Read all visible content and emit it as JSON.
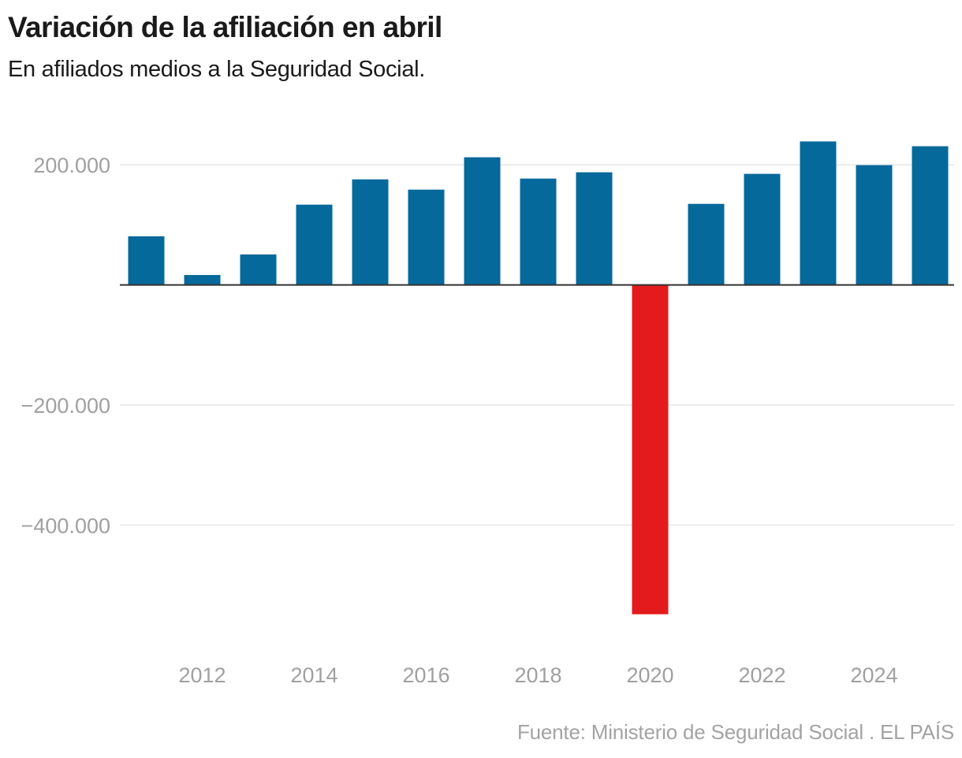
{
  "header": {
    "title": "Variación de la afiliación en abril",
    "subtitle": "En afiliados medios a la Seguridad Social."
  },
  "footer": {
    "source": "Fuente: Ministerio de Seguridad Social . EL PAÍS"
  },
  "colors": {
    "positive": "#05699b",
    "negative": "#e31b1c",
    "gridline": "#e6e6e6",
    "baseline": "#333333",
    "tick_label": "#a0a0a0"
  },
  "chart_data": {
    "type": "bar",
    "title": "Variación de la afiliación en abril",
    "subtitle": "En afiliados medios a la Seguridad Social.",
    "xlabel": "",
    "ylabel": "",
    "categories": [
      "2011",
      "2012",
      "2013",
      "2014",
      "2015",
      "2016",
      "2017",
      "2018",
      "2019",
      "2020",
      "2021",
      "2022",
      "2023",
      "2024",
      "2025"
    ],
    "values": [
      81000,
      16500,
      50800,
      133700,
      175800,
      158700,
      212600,
      177100,
      187600,
      -548500,
      135000,
      185000,
      239000,
      199500,
      231000
    ],
    "ylim": [
      -600000,
      260000
    ],
    "yticks": [
      200000,
      -200000,
      -400000
    ],
    "ytick_labels": [
      "200.000",
      "−200.000",
      "−400.000"
    ],
    "xtick_labels": [
      "2012",
      "2014",
      "2016",
      "2018",
      "2020",
      "2022",
      "2024"
    ],
    "grid": true,
    "legend": "none",
    "highlight_negative": true,
    "source": "Fuente: Ministerio de Seguridad Social . EL PAÍS"
  }
}
